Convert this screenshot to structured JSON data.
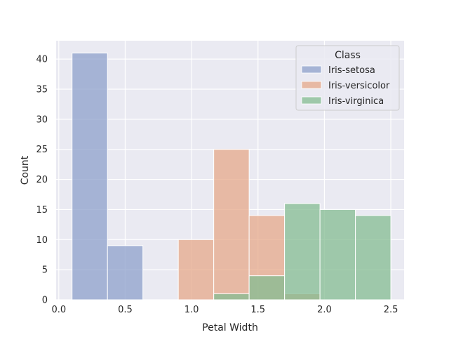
{
  "chart_data": {
    "type": "bar",
    "subtype": "histogram",
    "xlabel": "Petal Width",
    "ylabel": "Count",
    "xlim": [
      -0.02,
      2.6
    ],
    "ylim": [
      0,
      43.05
    ],
    "xticks": [
      0.0,
      0.5,
      1.0,
      1.5,
      2.0,
      2.5
    ],
    "xtick_labels": [
      "0.0",
      "0.5",
      "1.0",
      "1.5",
      "2.0",
      "2.5"
    ],
    "yticks": [
      0,
      5,
      10,
      15,
      20,
      25,
      30,
      35,
      40
    ],
    "ytick_labels": [
      "0",
      "5",
      "10",
      "15",
      "20",
      "25",
      "30",
      "35",
      "40"
    ],
    "grid": true,
    "legend": {
      "title": "Class",
      "placement": "top-right"
    },
    "bin_edges": [
      0.1,
      0.3667,
      0.6333,
      0.9,
      1.1667,
      1.4333,
      1.7,
      1.9667,
      2.2333,
      2.5
    ],
    "series": [
      {
        "name": "Iris-setosa",
        "color": "#8da0cb",
        "counts": [
          41,
          9,
          0,
          0,
          0,
          0,
          0,
          0,
          0
        ]
      },
      {
        "name": "Iris-versicolor",
        "color": "#e5a889",
        "counts": [
          0,
          0,
          0,
          10,
          25,
          14,
          1,
          0,
          0
        ]
      },
      {
        "name": "Iris-virginica",
        "color": "#84bc91",
        "counts": [
          0,
          0,
          0,
          0,
          1,
          4,
          16,
          15,
          14
        ]
      }
    ],
    "colors": {
      "plot_background": "#eaeaf2",
      "grid": "#ffffff"
    }
  }
}
